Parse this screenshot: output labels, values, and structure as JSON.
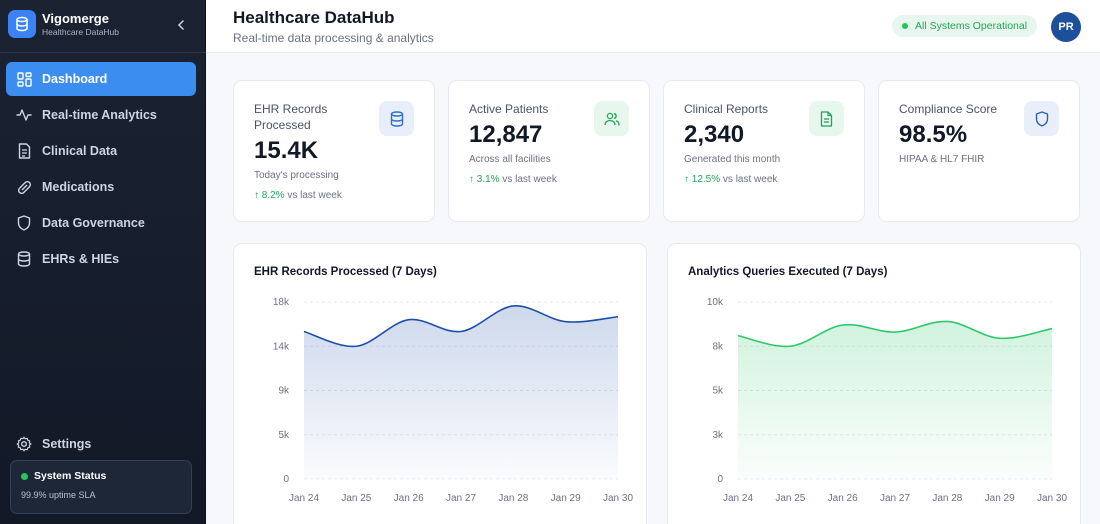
{
  "brand": {
    "name": "Vigomerge",
    "subtitle": "Healthcare DataHub"
  },
  "nav": [
    {
      "label": "Dashboard",
      "icon": "dashboard-icon",
      "active": true
    },
    {
      "label": "Real-time Analytics",
      "icon": "activity-icon",
      "active": false
    },
    {
      "label": "Clinical Data",
      "icon": "document-icon",
      "active": false
    },
    {
      "label": "Medications",
      "icon": "pill-icon",
      "active": false
    },
    {
      "label": "Data Governance",
      "icon": "shield-icon",
      "active": false
    },
    {
      "label": "EHRs & HIEs",
      "icon": "database-icon",
      "active": false
    }
  ],
  "settings": {
    "label": "Settings"
  },
  "system_status": {
    "title": "System Status",
    "detail": "99.9% uptime SLA"
  },
  "header": {
    "title": "Healthcare DataHub",
    "subtitle": "Real-time data processing & analytics",
    "badge": "All Systems Operational",
    "avatar": "PR"
  },
  "stats": [
    {
      "label": "EHR Records Processed",
      "value": "15.4K",
      "note": "Today's processing",
      "trend": "↑ 8.2%",
      "trend_suffix": "vs last week",
      "icon": "database-icon",
      "color": "#2f6fd0"
    },
    {
      "label": "Active Patients",
      "value": "12,847",
      "note": "Across all facilities",
      "trend": "↑ 3.1%",
      "trend_suffix": "vs last week",
      "icon": "users-icon",
      "color": "#22a35a"
    },
    {
      "label": "Clinical Reports",
      "value": "2,340",
      "note": "Generated this month",
      "trend": "↑ 12.5%",
      "trend_suffix": "vs last week",
      "icon": "file-text-icon",
      "color": "#22a35a"
    },
    {
      "label": "Compliance Score",
      "value": "98.5%",
      "note": "HIPAA & HL7 FHIR",
      "trend": "",
      "trend_suffix": "",
      "icon": "shield-icon",
      "color": "#2f5fb8"
    }
  ],
  "chart_data": [
    {
      "type": "area",
      "title": "EHR Records Processed (7 Days)",
      "categories": [
        "Jan 24",
        "Jan 25",
        "Jan 26",
        "Jan 27",
        "Jan 28",
        "Jan 29",
        "Jan 30"
      ],
      "yticks": [
        "0",
        "5k",
        "9k",
        "14k",
        "18k"
      ],
      "ylim": [
        0,
        18000
      ],
      "values": [
        15000,
        13500,
        16200,
        15000,
        17600,
        16000,
        16500
      ],
      "color": "#1d4fa8"
    },
    {
      "type": "area",
      "title": "Analytics Queries Executed (7 Days)",
      "categories": [
        "Jan 24",
        "Jan 25",
        "Jan 26",
        "Jan 27",
        "Jan 28",
        "Jan 29",
        "Jan 30"
      ],
      "yticks": [
        "0",
        "3k",
        "5k",
        "8k",
        "10k"
      ],
      "ylim": [
        0,
        10000
      ],
      "values": [
        8100,
        7500,
        8700,
        8300,
        8900,
        7950,
        8500
      ],
      "color": "#2cc86a"
    }
  ]
}
